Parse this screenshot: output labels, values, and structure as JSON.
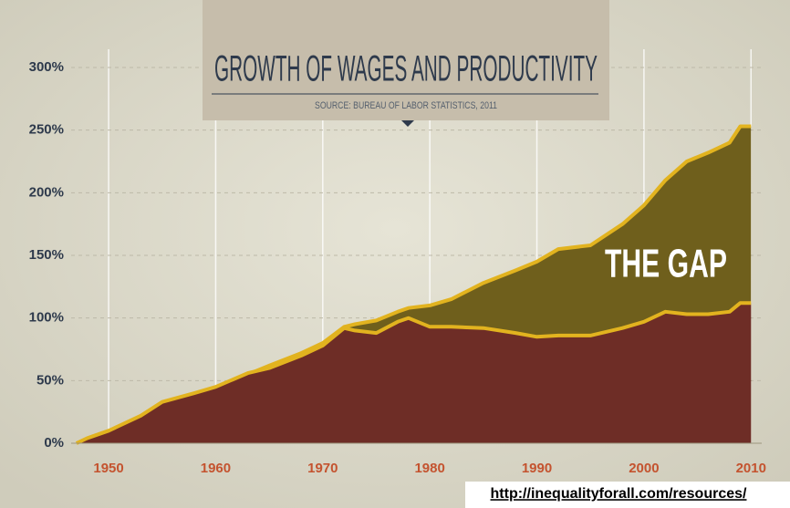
{
  "chart_data": {
    "type": "area",
    "title": "GROWTH OF WAGES AND PRODUCTIVITY",
    "subtitle": "SOURCE: BUREAU OF LABOR STATISTICS, 2011",
    "annotation": "THE GAP",
    "source_url": "http://inequalityforall.com/resources/",
    "x": [
      1947,
      1948,
      1950,
      1953,
      1955,
      1958,
      1960,
      1963,
      1965,
      1968,
      1970,
      1972,
      1973,
      1975,
      1977,
      1978,
      1980,
      1982,
      1985,
      1988,
      1990,
      1992,
      1995,
      1998,
      2000,
      2002,
      2004,
      2006,
      2008,
      2009,
      2010
    ],
    "series": [
      {
        "color": "#6f5f1c",
        "values": [
          0,
          4,
          10,
          20,
          27,
          37,
          42,
          55,
          62,
          72,
          80,
          93,
          95,
          98,
          105,
          108,
          110,
          115,
          128,
          138,
          145,
          155,
          158,
          175,
          190,
          210,
          225,
          232,
          240,
          253,
          253
        ]
      },
      {
        "color": "#6e2d26",
        "values": [
          0,
          4,
          10,
          22,
          33,
          40,
          45,
          56,
          60,
          70,
          78,
          92,
          90,
          88,
          97,
          100,
          93,
          93,
          92,
          88,
          85,
          86,
          86,
          92,
          97,
          105,
          103,
          103,
          105,
          112,
          112
        ]
      }
    ],
    "line_color": "#e2b31f",
    "xlim": [
      1946.5,
      2011
    ],
    "xticks": [
      1950,
      1960,
      1970,
      1980,
      1990,
      2000,
      2010
    ],
    "ylim": [
      0,
      300
    ],
    "yticks": [
      {
        "value": 0,
        "label": "0%"
      },
      {
        "value": 50,
        "label": "50%"
      },
      {
        "value": 100,
        "label": "100%"
      },
      {
        "value": 150,
        "label": "150%"
      },
      {
        "value": 200,
        "label": "200%"
      },
      {
        "value": 250,
        "label": "250%"
      },
      {
        "value": 300,
        "label": "300%"
      }
    ],
    "grid": true
  }
}
